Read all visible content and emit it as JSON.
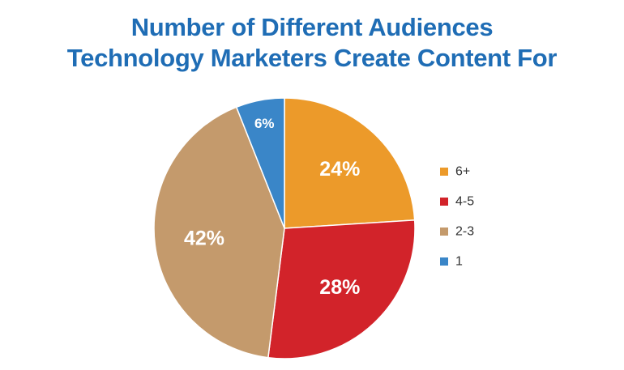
{
  "chart_data": {
    "type": "pie",
    "title_lines": [
      "Number of Different Audiences",
      "Technology Marketers Create Content For"
    ],
    "slices": [
      {
        "label": "6+",
        "value": 24,
        "value_label": "24%",
        "color": "#ec9a2a"
      },
      {
        "label": "4-5",
        "value": 28,
        "value_label": "28%",
        "color": "#d2232a"
      },
      {
        "label": "2-3",
        "value": 42,
        "value_label": "42%",
        "color": "#c49a6c"
      },
      {
        "label": "1",
        "value": 6,
        "value_label": "6%",
        "color": "#3a86c8"
      }
    ],
    "legend_position": "right",
    "start_angle": "top",
    "direction": "clockwise"
  }
}
